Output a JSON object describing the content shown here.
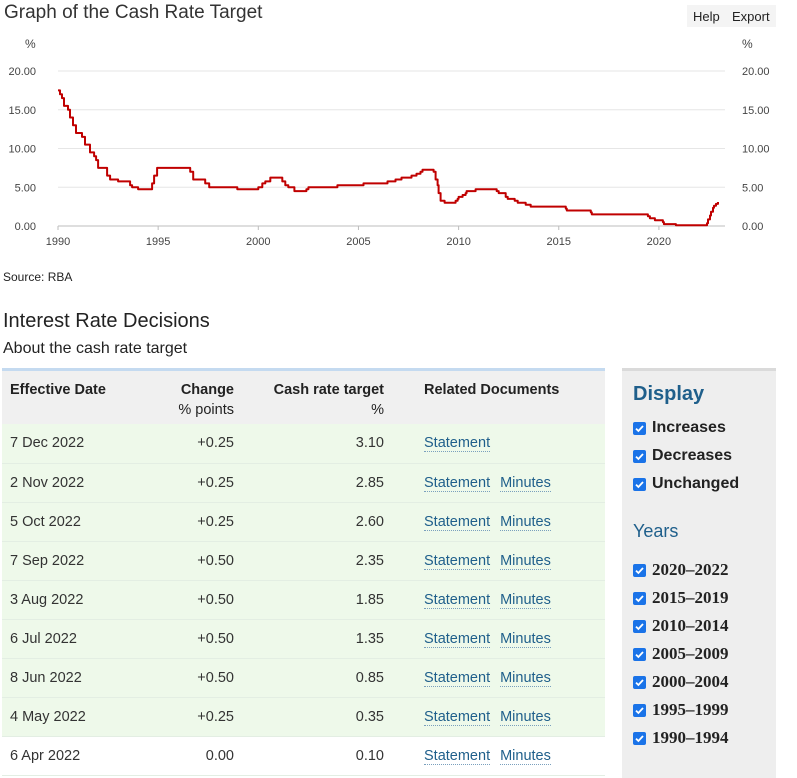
{
  "header": {
    "title": "Graph of the Cash Rate Target",
    "help_label": "Help",
    "export_label": "Export"
  },
  "chart_data": {
    "type": "line",
    "title": "Graph of the Cash Rate Target",
    "ylabel_left": "%",
    "ylabel_right": "%",
    "ylim": [
      0,
      20
    ],
    "xlim": [
      1990,
      2023.3
    ],
    "y_ticks": [
      "0.00",
      "5.00",
      "10.00",
      "15.00",
      "20.00"
    ],
    "x_ticks": [
      "1990",
      "1995",
      "2000",
      "2005",
      "2010",
      "2015",
      "2020"
    ],
    "grid": true,
    "series": [
      {
        "color": "#c00000",
        "points": [
          [
            1990.0,
            17.5
          ],
          [
            1990.1,
            17.0
          ],
          [
            1990.2,
            16.5
          ],
          [
            1990.3,
            15.5
          ],
          [
            1990.5,
            15.0
          ],
          [
            1990.6,
            14.0
          ],
          [
            1990.75,
            13.0
          ],
          [
            1990.9,
            12.0
          ],
          [
            1991.0,
            12.0
          ],
          [
            1991.2,
            11.5
          ],
          [
            1991.35,
            10.5
          ],
          [
            1991.5,
            10.5
          ],
          [
            1991.6,
            9.5
          ],
          [
            1991.8,
            9.0
          ],
          [
            1991.9,
            8.5
          ],
          [
            1992.0,
            7.5
          ],
          [
            1992.3,
            7.5
          ],
          [
            1992.45,
            6.5
          ],
          [
            1992.6,
            6.0
          ],
          [
            1993.0,
            5.75
          ],
          [
            1993.35,
            5.75
          ],
          [
            1993.6,
            5.25
          ],
          [
            1993.7,
            5.0
          ],
          [
            1994.0,
            4.75
          ],
          [
            1994.6,
            4.75
          ],
          [
            1994.7,
            5.5
          ],
          [
            1994.8,
            6.5
          ],
          [
            1994.95,
            7.5
          ],
          [
            1996.0,
            7.5
          ],
          [
            1996.6,
            7.0
          ],
          [
            1996.75,
            6.0
          ],
          [
            1997.0,
            6.0
          ],
          [
            1997.35,
            5.5
          ],
          [
            1997.55,
            5.0
          ],
          [
            1998.9,
            5.0
          ],
          [
            1998.95,
            4.75
          ],
          [
            1999.85,
            4.75
          ],
          [
            2000.0,
            5.0
          ],
          [
            2000.2,
            5.5
          ],
          [
            2000.35,
            5.75
          ],
          [
            2000.6,
            6.25
          ],
          [
            2001.1,
            6.25
          ],
          [
            2001.2,
            5.75
          ],
          [
            2001.35,
            5.25
          ],
          [
            2001.5,
            5.0
          ],
          [
            2001.8,
            4.5
          ],
          [
            2002.3,
            4.5
          ],
          [
            2002.4,
            4.75
          ],
          [
            2002.5,
            5.0
          ],
          [
            2003.9,
            5.0
          ],
          [
            2003.95,
            5.25
          ],
          [
            2004.0,
            5.25
          ],
          [
            2005.2,
            5.25
          ],
          [
            2005.25,
            5.5
          ],
          [
            2006.4,
            5.5
          ],
          [
            2006.45,
            5.75
          ],
          [
            2006.85,
            6.0
          ],
          [
            2007.15,
            6.25
          ],
          [
            2007.6,
            6.25
          ],
          [
            2007.65,
            6.5
          ],
          [
            2007.9,
            6.75
          ],
          [
            2008.1,
            7.0
          ],
          [
            2008.2,
            7.25
          ],
          [
            2008.7,
            7.25
          ],
          [
            2008.75,
            7.0
          ],
          [
            2008.85,
            6.0
          ],
          [
            2008.95,
            5.25
          ],
          [
            2009.0,
            4.25
          ],
          [
            2009.1,
            3.25
          ],
          [
            2009.3,
            3.0
          ],
          [
            2009.8,
            3.0
          ],
          [
            2009.85,
            3.25
          ],
          [
            2009.95,
            3.5
          ],
          [
            2010.0,
            3.75
          ],
          [
            2010.2,
            4.0
          ],
          [
            2010.35,
            4.25
          ],
          [
            2010.4,
            4.5
          ],
          [
            2010.85,
            4.75
          ],
          [
            2011.85,
            4.75
          ],
          [
            2011.9,
            4.5
          ],
          [
            2012.0,
            4.25
          ],
          [
            2012.35,
            3.75
          ],
          [
            2012.45,
            3.5
          ],
          [
            2012.8,
            3.25
          ],
          [
            2012.95,
            3.0
          ],
          [
            2013.35,
            2.75
          ],
          [
            2013.6,
            2.5
          ],
          [
            2015.1,
            2.5
          ],
          [
            2015.35,
            2.25
          ],
          [
            2015.4,
            2.0
          ],
          [
            2016.35,
            2.0
          ],
          [
            2016.6,
            1.75
          ],
          [
            2016.65,
            1.5
          ],
          [
            2019.4,
            1.5
          ],
          [
            2019.45,
            1.25
          ],
          [
            2019.55,
            1.0
          ],
          [
            2019.8,
            0.75
          ],
          [
            2020.2,
            0.5
          ],
          [
            2020.25,
            0.25
          ],
          [
            2020.85,
            0.1
          ],
          [
            2022.35,
            0.1
          ],
          [
            2022.4,
            0.35
          ],
          [
            2022.45,
            0.85
          ],
          [
            2022.55,
            1.35
          ],
          [
            2022.6,
            1.85
          ],
          [
            2022.7,
            2.35
          ],
          [
            2022.75,
            2.6
          ],
          [
            2022.85,
            2.85
          ],
          [
            2022.95,
            3.1
          ]
        ]
      }
    ]
  },
  "footer": {
    "source": "Source: RBA"
  },
  "section": {
    "title": "Interest Rate Decisions",
    "subtitle": "About the cash rate target"
  },
  "table": {
    "headers": {
      "date": "Effective Date",
      "change": "Change",
      "change_unit": "% points",
      "target": "Cash rate target",
      "target_unit": "%",
      "docs": "Related Documents"
    },
    "rows": [
      {
        "date": "7 Dec 2022",
        "change": "+0.25",
        "target": "3.10",
        "statement": "Statement",
        "minutes": ""
      },
      {
        "date": "2 Nov 2022",
        "change": "+0.25",
        "target": "2.85",
        "statement": "Statement",
        "minutes": "Minutes"
      },
      {
        "date": "5 Oct 2022",
        "change": "+0.25",
        "target": "2.60",
        "statement": "Statement",
        "minutes": "Minutes"
      },
      {
        "date": "7 Sep 2022",
        "change": "+0.50",
        "target": "2.35",
        "statement": "Statement",
        "minutes": "Minutes"
      },
      {
        "date": "3 Aug 2022",
        "change": "+0.50",
        "target": "1.85",
        "statement": "Statement",
        "minutes": "Minutes"
      },
      {
        "date": "6 Jul 2022",
        "change": "+0.50",
        "target": "1.35",
        "statement": "Statement",
        "minutes": "Minutes"
      },
      {
        "date": "8 Jun 2022",
        "change": "+0.50",
        "target": "0.85",
        "statement": "Statement",
        "minutes": "Minutes"
      },
      {
        "date": "4 May 2022",
        "change": "+0.25",
        "target": "0.35",
        "statement": "Statement",
        "minutes": "Minutes"
      },
      {
        "date": "6 Apr 2022",
        "change": "0.00",
        "target": "0.10",
        "statement": "Statement",
        "minutes": "Minutes"
      }
    ]
  },
  "display_panel": {
    "title": "Display",
    "options": [
      {
        "label": "Increases",
        "checked": true
      },
      {
        "label": "Decreases",
        "checked": true
      },
      {
        "label": "Unchanged",
        "checked": true
      }
    ],
    "years_title": "Years",
    "years": [
      {
        "label": "2020–2022",
        "checked": true
      },
      {
        "label": "2015–2019",
        "checked": true
      },
      {
        "label": "2010–2014",
        "checked": true
      },
      {
        "label": "2005–2009",
        "checked": true
      },
      {
        "label": "2000–2004",
        "checked": true
      },
      {
        "label": "1995–1999",
        "checked": true
      },
      {
        "label": "1990–1994",
        "checked": true
      }
    ]
  },
  "colors": {
    "line": "#c00000",
    "link": "#1f5f8b",
    "increase_row": "#eef9ea",
    "checkbox": "#1a73e8"
  }
}
